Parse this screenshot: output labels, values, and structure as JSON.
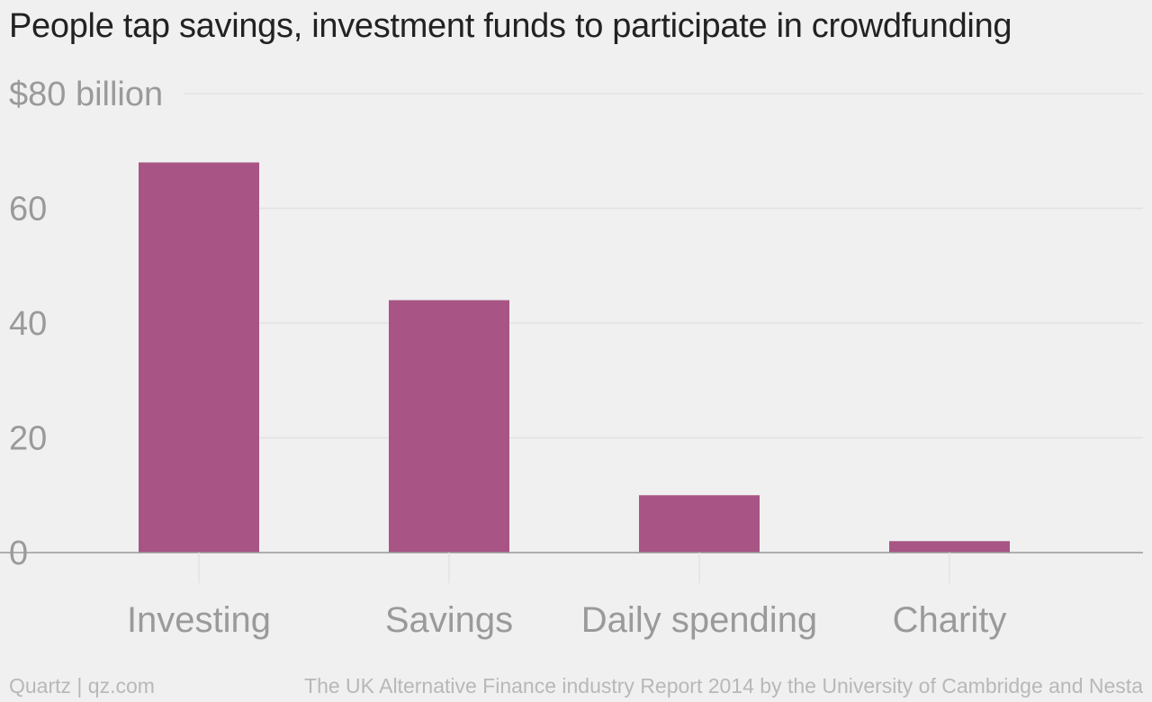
{
  "header": {
    "title": "People tap savings, investment funds to participate in crowdfunding"
  },
  "footer": {
    "credit": "Quartz | qz.com",
    "source": "The UK Alternative Finance industry Report 2014 by the University of Cambridge and Nesta"
  },
  "colors": {
    "bar": "#a85585",
    "grid": "#e2e2e2",
    "baseline": "#999999",
    "tick_text": "#9a9a9a"
  },
  "chart_data": {
    "type": "bar",
    "categories": [
      "Investing",
      "Savings",
      "Daily spending",
      "Charity"
    ],
    "values": [
      68,
      44,
      10,
      2
    ],
    "title": "People tap savings, investment funds to participate in crowdfunding",
    "xlabel": "",
    "ylabel": "",
    "ylim": [
      0,
      80
    ],
    "yticks": [
      0,
      20,
      40,
      60,
      80
    ],
    "ytick_labels": [
      "0",
      "20",
      "40",
      "60",
      "$80 billion"
    ],
    "grid": true,
    "legend": "none"
  }
}
